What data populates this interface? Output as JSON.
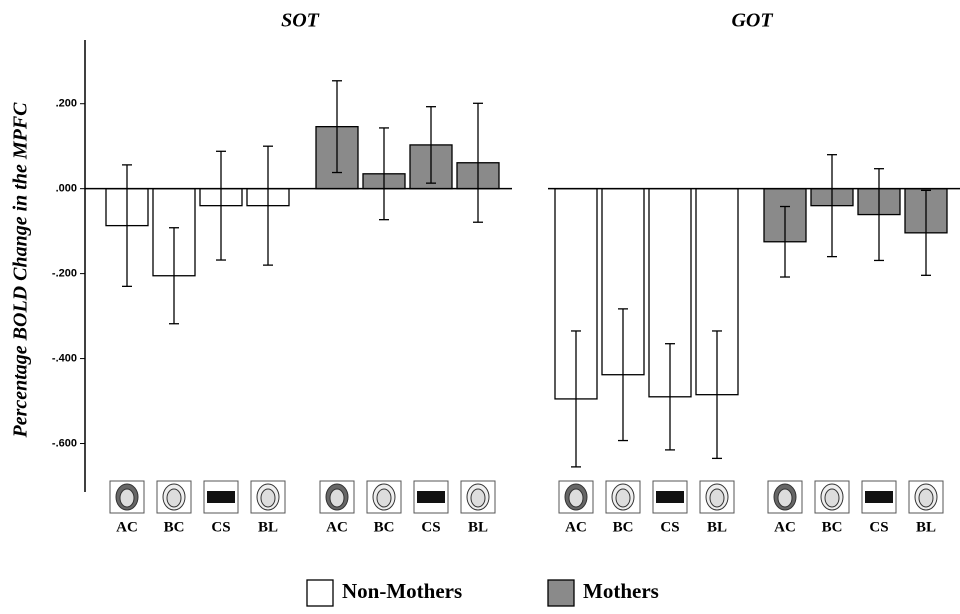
{
  "chart_data": [
    {
      "type": "bar",
      "title": "SOT",
      "ylabel": "Percentage BOLD Change in the MPFC",
      "categories": [
        "AC",
        "BC",
        "CS",
        "BL"
      ],
      "series": [
        {
          "name": "Non-Mothers",
          "color": "#ffffff",
          "values": [
            -0.087,
            -0.205,
            -0.04,
            -0.04
          ],
          "errors": [
            0.143,
            0.113,
            0.128,
            0.14
          ]
        },
        {
          "name": "Mothers",
          "color": "#8a8a8a",
          "values": [
            0.146,
            0.035,
            0.103,
            0.061
          ],
          "errors": [
            0.108,
            0.108,
            0.09,
            0.14
          ]
        }
      ],
      "ylim": [
        -0.7,
        0.35
      ],
      "yticks": [
        {
          "value": 0.2,
          "label": ".200"
        },
        {
          "value": 0,
          "label": ".000"
        },
        {
          "value": -0.2,
          "label": "-.200"
        },
        {
          "value": -0.4,
          "label": "-.400"
        },
        {
          "value": -0.6,
          "label": "-.600"
        }
      ]
    },
    {
      "type": "bar",
      "title": "GOT",
      "categories": [
        "AC",
        "BC",
        "CS",
        "BL"
      ],
      "series": [
        {
          "color": "#ffffff",
          "values": [
            -0.495,
            -0.438,
            -0.49,
            -0.485
          ],
          "errors": [
            0.16,
            0.155,
            0.125,
            0.15
          ]
        },
        {
          "color": "#8a8a8a",
          "values": [
            -0.125,
            -0.04,
            -0.061,
            -0.104
          ],
          "errors": [
            0.083,
            0.12,
            0.108,
            0.1
          ]
        }
      ],
      "ylim": [
        -0.7,
        0.35
      ]
    }
  ]
}
